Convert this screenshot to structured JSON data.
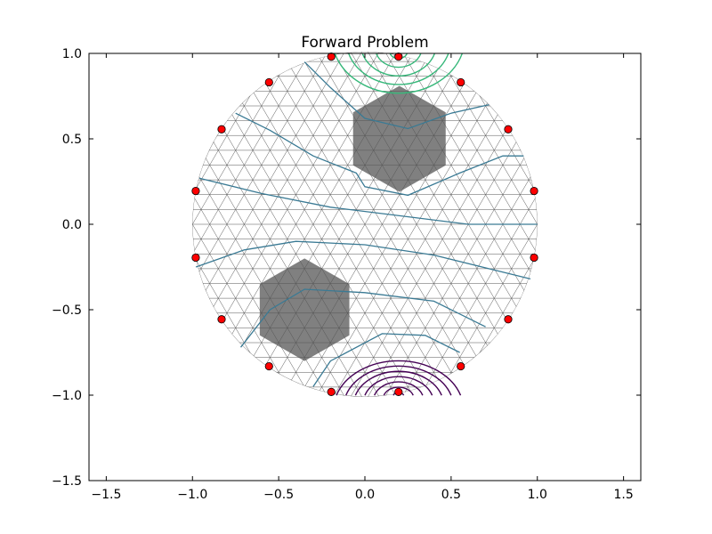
{
  "chart_data": {
    "type": "scatter",
    "title": "Forward Problem",
    "xlabel": "",
    "ylabel": "",
    "xlim": [
      -1.6,
      1.6
    ],
    "ylim": [
      -1.5,
      1.0
    ],
    "xticks": [
      -1.5,
      -1.0,
      -0.5,
      0.0,
      0.5,
      1.0,
      1.5
    ],
    "xtick_labels": [
      "−1.5",
      "−1.0",
      "−0.5",
      "0.0",
      "0.5",
      "1.0",
      "1.5"
    ],
    "yticks": [
      -1.5,
      -1.0,
      -0.5,
      0.0,
      0.5,
      1.0
    ],
    "ytick_labels": [
      "−1.5",
      "−1.0",
      "−0.5",
      "0.0",
      "0.5",
      "1.0"
    ],
    "grid": false,
    "domain": {
      "shape": "circle",
      "center": [
        0,
        0
      ],
      "radius": 1.0
    },
    "electrodes": [
      {
        "x": 0.195,
        "y": 0.981
      },
      {
        "x": 0.556,
        "y": 0.831
      },
      {
        "x": 0.831,
        "y": 0.556
      },
      {
        "x": 0.981,
        "y": 0.195
      },
      {
        "x": 0.981,
        "y": -0.195
      },
      {
        "x": 0.831,
        "y": -0.556
      },
      {
        "x": 0.556,
        "y": -0.831
      },
      {
        "x": 0.195,
        "y": -0.981
      },
      {
        "x": -0.195,
        "y": -0.981
      },
      {
        "x": -0.556,
        "y": -0.831
      },
      {
        "x": -0.831,
        "y": -0.556
      },
      {
        "x": -0.981,
        "y": -0.195
      },
      {
        "x": -0.981,
        "y": 0.195
      },
      {
        "x": -0.831,
        "y": 0.556
      },
      {
        "x": -0.556,
        "y": 0.831
      },
      {
        "x": -0.195,
        "y": 0.981
      }
    ],
    "anomalies": [
      {
        "center": [
          0.2,
          0.5
        ],
        "radius": 0.31
      },
      {
        "center": [
          -0.35,
          -0.5
        ],
        "radius": 0.3
      }
    ],
    "colors": {
      "electrode": "#ff0000",
      "anomaly": "#808080",
      "mesh": "#555555",
      "contour_mid": "#3a7a94",
      "contour_source": "#35b779",
      "contour_sink": "#440154"
    }
  }
}
